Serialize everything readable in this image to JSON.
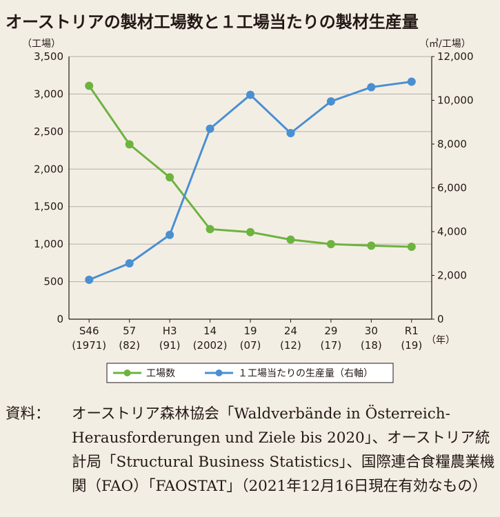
{
  "chart_data": {
    "type": "line",
    "title": "オーストリアの製材工場数と１工場当たりの製材生産量",
    "left_axis": {
      "unit": "（工場）",
      "ylim": [
        0,
        3500
      ],
      "ticks": [
        0,
        500,
        1000,
        1500,
        2000,
        2500,
        3000,
        3500
      ]
    },
    "right_axis": {
      "unit": "（㎥/工場）",
      "ylim": [
        0,
        12000
      ],
      "ticks": [
        0,
        2000,
        4000,
        6000,
        8000,
        10000,
        12000
      ]
    },
    "x_unit": "（年）",
    "categories": [
      "S46\n(1971)",
      "57\n(82)",
      "H3\n(91)",
      "14\n(2002)",
      "19\n(07)",
      "24\n(12)",
      "29\n(17)",
      "30\n(18)",
      "R1\n(19)"
    ],
    "series": [
      {
        "name": "工場数",
        "axis": "left",
        "color": "#6db33f",
        "values": [
          3110,
          2330,
          1890,
          1200,
          1160,
          1060,
          1000,
          980,
          965
        ]
      },
      {
        "name": "１工場当たりの生産量（右軸）",
        "axis": "right",
        "color": "#4a8fd1",
        "values": [
          1800,
          2550,
          3850,
          8700,
          10250,
          8500,
          9950,
          10600,
          10850
        ]
      }
    ],
    "grid": "horizontal",
    "legend_position": "bottom"
  },
  "source": {
    "label": "資料：",
    "text": "オーストリア森林協会「Waldverbände in Österreich-Herausforderungen und Ziele bis 2020」、オーストリア統計局「Structural Business Statistics」、国際連合食糧農業機関（FAO）「FAOSTAT」（2021年12月16日現在有効なもの）"
  }
}
